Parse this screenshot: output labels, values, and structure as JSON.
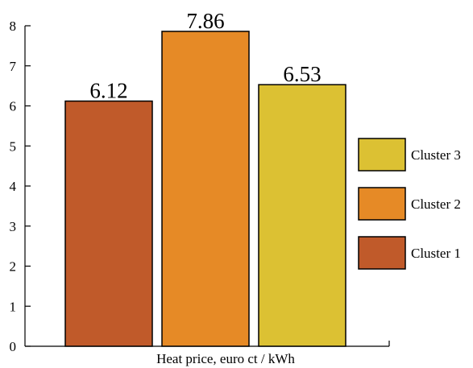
{
  "chart_data": {
    "type": "bar",
    "xlabel": "Heat price, euro ct / kWh",
    "ylabel": "",
    "ylim": [
      0,
      8
    ],
    "yticks": [
      0,
      1,
      2,
      3,
      4,
      5,
      6,
      7,
      8
    ],
    "grid": false,
    "legend_position": "right",
    "series": [
      {
        "name": "Cluster 1",
        "value": 6.12,
        "value_label": "6.12",
        "color": "#c05a2a"
      },
      {
        "name": "Cluster 2",
        "value": 7.86,
        "value_label": "7.86",
        "color": "#e68a26"
      },
      {
        "name": "Cluster 3",
        "value": 6.53,
        "value_label": "6.53",
        "color": "#dcc133"
      }
    ],
    "legend_order": [
      "Cluster 3",
      "Cluster 2",
      "Cluster 1"
    ]
  }
}
